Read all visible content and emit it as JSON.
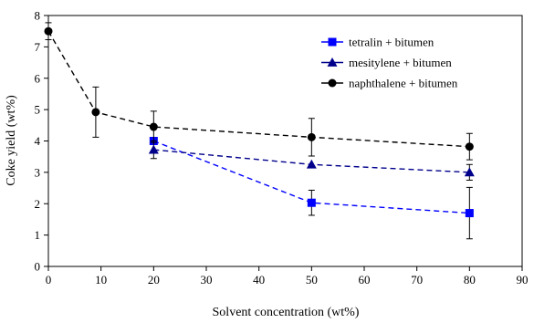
{
  "chart_data": {
    "type": "line",
    "xlabel": "Solvent concentration (wt%)",
    "ylabel": "Coke yield (wt%)",
    "xlim": [
      0,
      90
    ],
    "ylim": [
      0,
      8
    ],
    "xticks": [
      0,
      10,
      20,
      30,
      40,
      50,
      60,
      70,
      80,
      90
    ],
    "yticks": [
      0,
      1,
      2,
      3,
      4,
      5,
      6,
      7,
      8
    ],
    "grid": false,
    "legend_position": "top-right",
    "series": [
      {
        "name": "tetralin + bitumen",
        "color": "#0000ff",
        "marker": "square",
        "x": [
          20,
          50,
          80
        ],
        "y": [
          4.0,
          2.03,
          1.7
        ],
        "err": [
          0.0,
          0.4,
          0.82
        ]
      },
      {
        "name": "mesitylene + bitumen",
        "color": "#00008b",
        "marker": "triangle",
        "x": [
          20,
          50,
          80
        ],
        "y": [
          3.72,
          3.25,
          3.0
        ],
        "err": [
          0.28,
          0.0,
          0.25
        ]
      },
      {
        "name": "naphthalene + bitumen",
        "color": "#000000",
        "marker": "circle",
        "x": [
          0,
          9,
          20,
          50,
          80
        ],
        "y": [
          7.5,
          4.92,
          4.45,
          4.12,
          3.82
        ],
        "err": [
          0.27,
          0.8,
          0.5,
          0.6,
          0.42
        ]
      }
    ]
  }
}
